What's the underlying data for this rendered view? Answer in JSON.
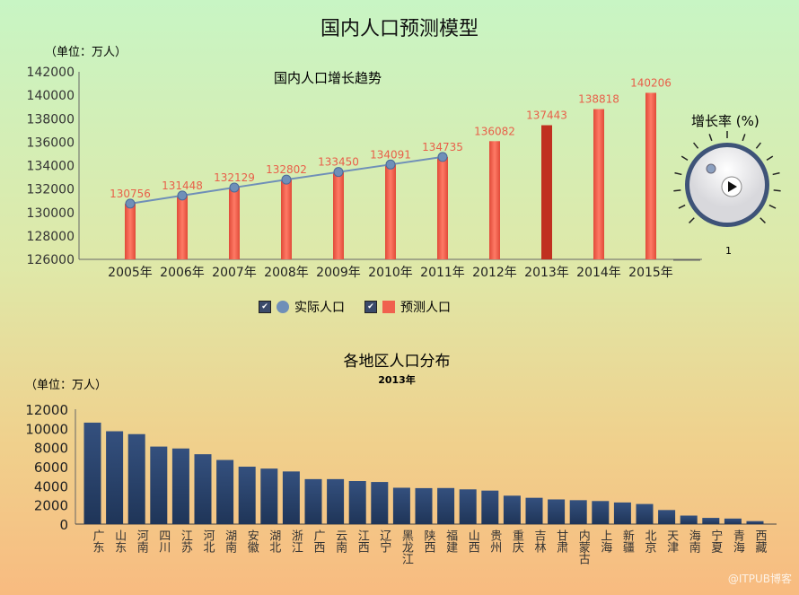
{
  "title": "国内人口预测模型",
  "watermark": "@ITPUB博客",
  "chart_data": [
    {
      "type": "bar",
      "title": "国内人口增长趋势",
      "unit_label": "（单位：万人）",
      "categories": [
        "2005年",
        "2006年",
        "2007年",
        "2008年",
        "2009年",
        "2010年",
        "2011年",
        "2012年",
        "2013年",
        "2014年",
        "2015年"
      ],
      "series": [
        {
          "name": "实际人口",
          "type": "line",
          "values": [
            130756,
            131448,
            132129,
            132802,
            133450,
            134091,
            134735,
            null,
            null,
            null,
            null
          ]
        },
        {
          "name": "预测人口",
          "type": "bar",
          "values": [
            130756,
            131448,
            132129,
            132802,
            133450,
            134091,
            134735,
            136082,
            137443,
            138818,
            140206
          ]
        }
      ],
      "highlight": "2013年",
      "ylim": [
        126000,
        142000
      ],
      "yticks": [
        126000,
        128000,
        130000,
        132000,
        134000,
        136000,
        138000,
        140000,
        142000
      ],
      "legend": "bottom",
      "colors": {
        "line": "#6f8fb8",
        "bar": "#f0614e",
        "highlight": "#c03020"
      }
    },
    {
      "type": "bar",
      "title": "各地区人口分布",
      "subtitle": "2013年",
      "unit_label": "（单位：万人）",
      "categories": [
        "广东",
        "山东",
        "河南",
        "四川",
        "江苏",
        "河北",
        "湖南",
        "安徽",
        "湖北",
        "浙江",
        "广西",
        "云南",
        "江西",
        "辽宁",
        "黑龙江",
        "陕西",
        "福建",
        "山西",
        "贵州",
        "重庆",
        "吉林",
        "甘肃",
        "内蒙古",
        "上海",
        "新疆",
        "北京",
        "天津",
        "海南",
        "宁夏",
        "青海",
        "西藏"
      ],
      "values": [
        10600,
        9700,
        9400,
        8100,
        7900,
        7300,
        6700,
        6000,
        5800,
        5500,
        4700,
        4700,
        4500,
        4400,
        3800,
        3760,
        3770,
        3630,
        3500,
        2970,
        2750,
        2580,
        2500,
        2410,
        2260,
        2100,
        1470,
        890,
        650,
        580,
        310
      ],
      "ylim": [
        0,
        12000
      ],
      "yticks": [
        0,
        2000,
        4000,
        6000,
        8000,
        10000,
        12000
      ],
      "colors": {
        "bar": "#2e4570"
      }
    }
  ],
  "gauge": {
    "title": "增长率 (%)",
    "value": "1"
  }
}
